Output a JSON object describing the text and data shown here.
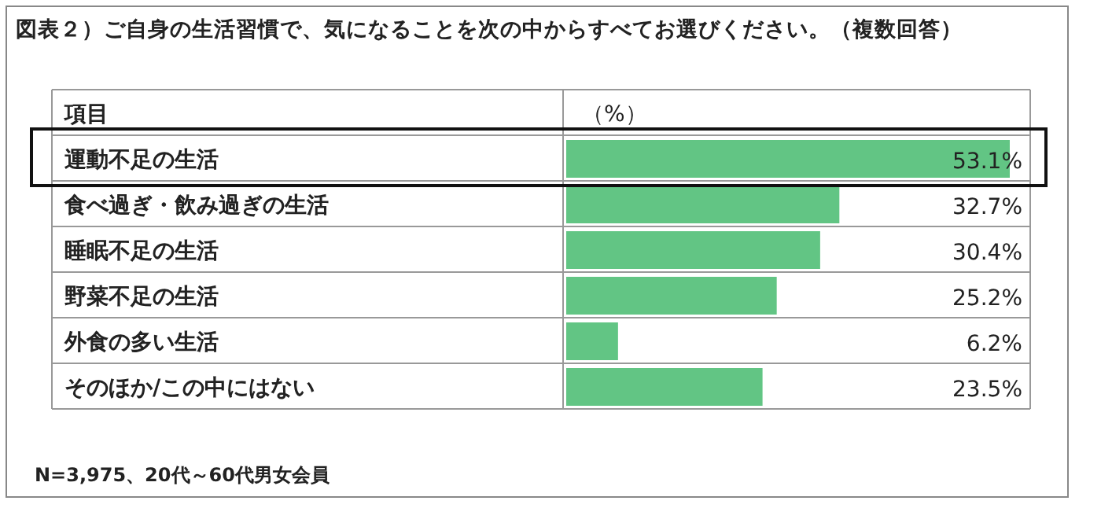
{
  "chart_data": {
    "type": "bar",
    "orientation": "horizontal",
    "title": "図表２）ご自身の生活習慣で、気になることを次の中からすべてお選びください。（複数回答）",
    "ylabel": "項目",
    "xlabel": "（%）",
    "categories": [
      "運動不足の生活",
      "食べ過ぎ・飲み過ぎの生活",
      "睡眠不足の生活",
      "野菜不足の生活",
      "外食の多い生活",
      "そのほか/この中にはない"
    ],
    "values": [
      53.1,
      32.7,
      30.4,
      25.2,
      6.2,
      23.5
    ],
    "value_labels": [
      "53.1%",
      "32.7%",
      "30.4%",
      "25.2%",
      "6.2%",
      "23.5%"
    ],
    "color": "#62c584",
    "annotations": [
      "N=3,975、20代～60代男女会員"
    ]
  }
}
